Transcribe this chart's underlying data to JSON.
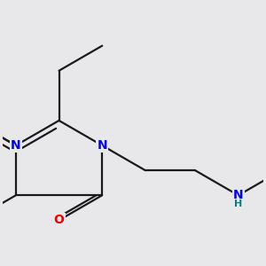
{
  "background_color": "#e8e8ea",
  "bond_color": "#1a1a1a",
  "bond_width": 1.6,
  "atom_colors": {
    "N": "#0000ee",
    "O": "#ee0000",
    "NH": "#008080",
    "C": "#1a1a1a"
  },
  "font_size_N": 10,
  "font_size_O": 10,
  "font_size_NH": 9,
  "bl": 0.42
}
